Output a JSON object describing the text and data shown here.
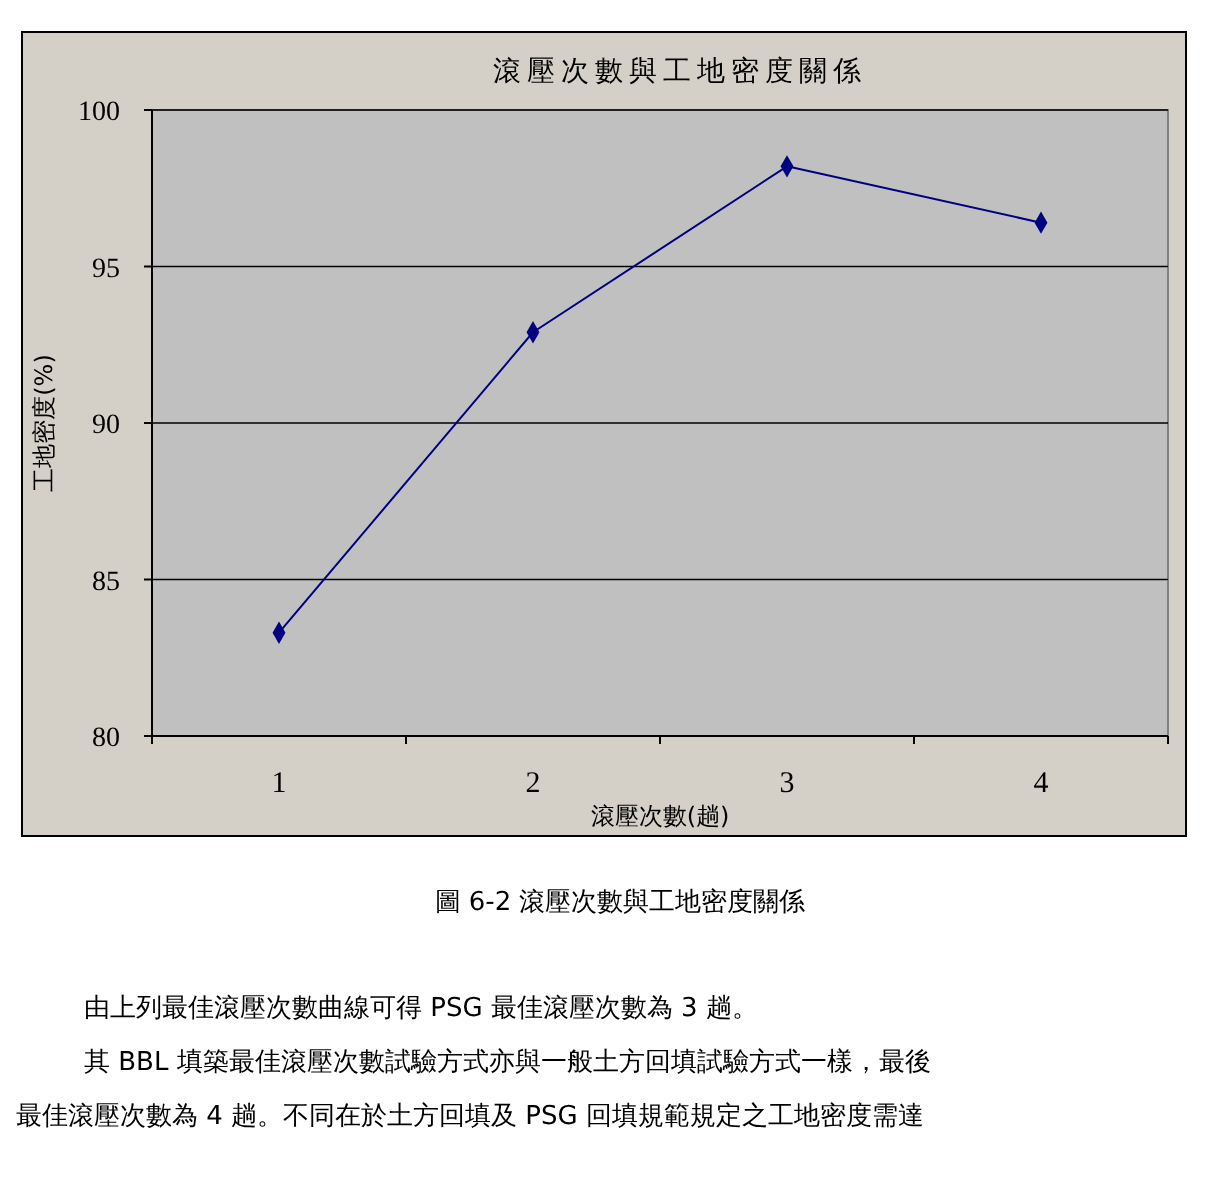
{
  "chart_data": {
    "type": "line",
    "title": "滾壓次數與工地密度關係",
    "xlabel": "滾壓次數(趟)",
    "ylabel": "工地密度(%)",
    "categories": [
      "1",
      "2",
      "3",
      "4"
    ],
    "series": [
      {
        "color": "#000080",
        "values": [
          83.3,
          92.9,
          98.2,
          96.4
        ]
      }
    ],
    "ylim": [
      80,
      100
    ],
    "yticks": [
      80,
      85,
      90,
      95,
      100
    ],
    "grid": "y",
    "marker": "diamond",
    "line_style": "solid",
    "annotations": [
      "圖 6-2 滾壓次數與工地密度關係",
      "由上列最佳滾壓次數曲線可得 PSG 最佳滾壓次數為 3 趟。",
      "其 BBL 填築最佳滾壓次數試驗方式亦與一般土方回填試驗方式一樣，最後",
      "最佳滾壓次數為 4 趟。不同在於土方回填及 PSG 回填規範規定之工地密度需達"
    ]
  }
}
